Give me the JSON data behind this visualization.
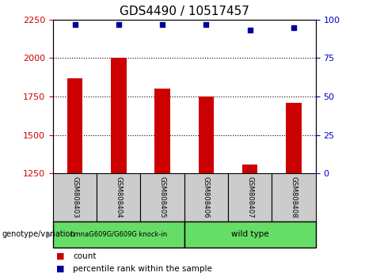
{
  "title": "GDS4490 / 10517457",
  "samples": [
    "GSM808403",
    "GSM808404",
    "GSM808405",
    "GSM808406",
    "GSM808407",
    "GSM808408"
  ],
  "counts": [
    1870,
    2000,
    1800,
    1750,
    1310,
    1710
  ],
  "percentile_ranks": [
    97,
    97,
    97,
    97,
    93,
    95
  ],
  "bar_color": "#cc0000",
  "dot_color": "#000099",
  "ylim_left": [
    1250,
    2250
  ],
  "ylim_right": [
    0,
    100
  ],
  "yticks_left": [
    1250,
    1500,
    1750,
    2000,
    2250
  ],
  "yticks_right": [
    0,
    25,
    50,
    75,
    100
  ],
  "group1_label": "LmnaG609G/G609G knock-in",
  "group2_label": "wild type",
  "group_color": "#66dd66",
  "xlabel_group": "genotype/variation",
  "legend_count_label": "count",
  "legend_pct_label": "percentile rank within the sample",
  "tick_label_color_left": "#cc0000",
  "tick_label_color_right": "#0000cc",
  "title_fontsize": 11,
  "bar_width": 0.35,
  "sample_box_color": "#cccccc",
  "tick_fontsize": 8
}
